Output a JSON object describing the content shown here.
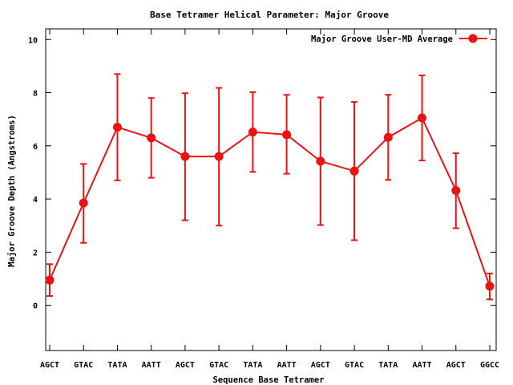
{
  "chart_data": {
    "type": "line",
    "title": "Base Tetramer Helical Parameter: Major Groove",
    "xlabel": "Sequence Base Tetramer",
    "ylabel": "Major Groove Depth (Angstroms)",
    "categories": [
      "AGCT",
      "GTAC",
      "TATA",
      "AATT",
      "AGCT",
      "GTAC",
      "TATA",
      "AATT",
      "AGCT",
      "GTAC",
      "TATA",
      "AATT",
      "AGCT",
      "GGCC"
    ],
    "ylim": [
      -1.7,
      10.4
    ],
    "yticks": [
      0,
      2,
      4,
      6,
      8,
      10
    ],
    "legend_position": "top-right",
    "grid": false,
    "series": [
      {
        "name": "Major Groove User-MD Average",
        "color": "#ee1111",
        "values": [
          0.95,
          3.85,
          6.7,
          6.3,
          5.6,
          5.6,
          6.52,
          6.42,
          5.42,
          5.05,
          6.32,
          7.05,
          4.32,
          0.72
        ],
        "err_low": [
          0.35,
          2.35,
          4.7,
          4.8,
          3.2,
          3.0,
          5.02,
          4.95,
          3.02,
          2.45,
          4.72,
          5.45,
          2.9,
          0.22
        ],
        "err_high": [
          1.55,
          5.32,
          8.7,
          7.8,
          7.98,
          8.18,
          8.02,
          7.92,
          7.82,
          7.65,
          7.92,
          8.65,
          5.72,
          1.2
        ]
      }
    ]
  }
}
